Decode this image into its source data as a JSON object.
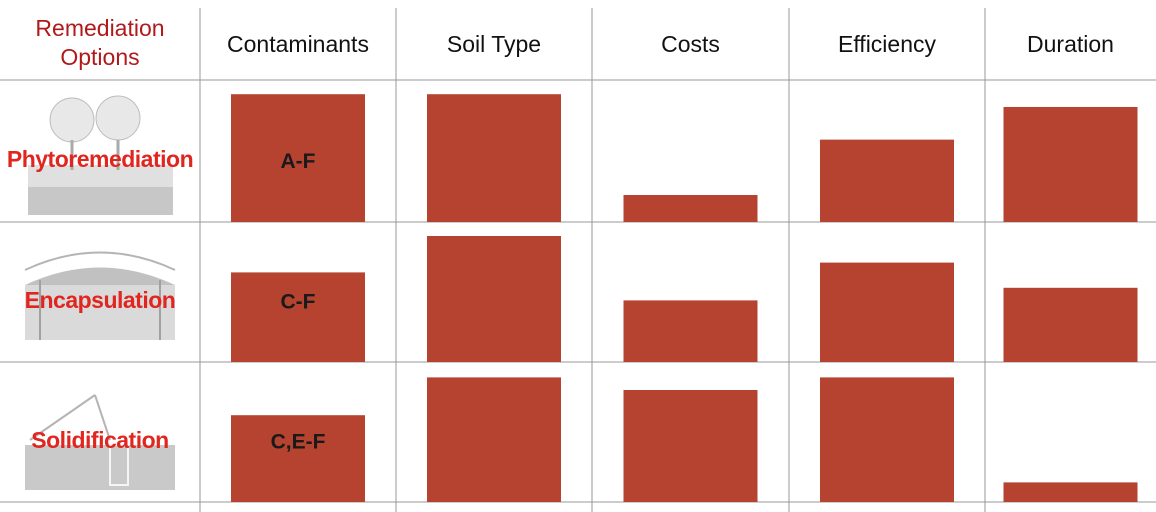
{
  "chart_data": {
    "type": "bar-matrix",
    "corner_label": [
      "Remediation",
      "Options"
    ],
    "categories": [
      "Contaminants",
      "Soil Type",
      "Costs",
      "Efficiency",
      "Duration"
    ],
    "color": "#b5432f",
    "ylim": [
      0,
      100
    ],
    "series": [
      {
        "name": "Phytoremediation",
        "label": "A-F",
        "values": [
          90,
          90,
          19,
          58,
          81
        ]
      },
      {
        "name": "Encapsulation",
        "label": "C-F",
        "values": [
          64,
          90,
          44,
          71,
          53
        ]
      },
      {
        "name": "Solidification",
        "label": "C,E-F",
        "values": [
          62,
          89,
          80,
          89,
          14
        ]
      }
    ]
  }
}
